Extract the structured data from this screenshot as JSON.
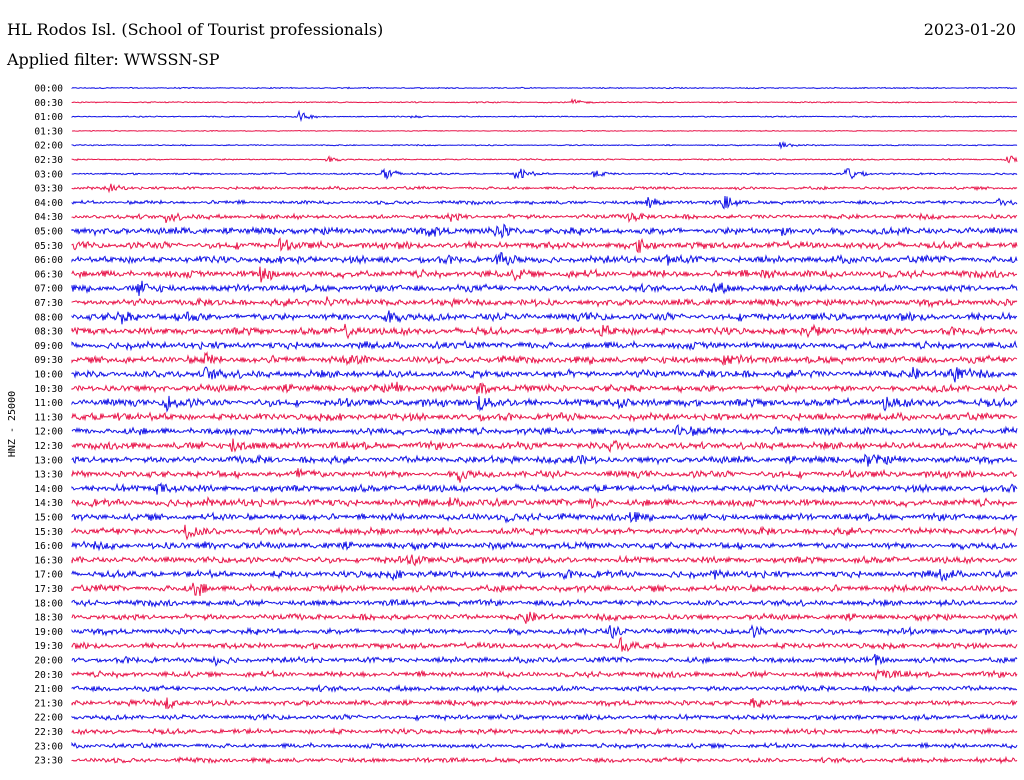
{
  "header": {
    "station": "HL Rodos Isl. (School of Tourist professionals)",
    "date": "2023-01-20",
    "filter_line": "Applied filter: WWSSN-SP"
  },
  "colors": {
    "odd_trace": "#1010e6",
    "even_trace": "#e8154a",
    "background": "#ffffff"
  },
  "chart_data": {
    "type": "line",
    "ylabel": "HNZ - 25000",
    "grid": false,
    "rows": [
      "00:00",
      "00:30",
      "01:00",
      "01:30",
      "02:00",
      "02:30",
      "03:00",
      "03:30",
      "04:00",
      "04:30",
      "05:00",
      "05:30",
      "06:00",
      "06:30",
      "07:00",
      "07:30",
      "08:00",
      "08:30",
      "09:00",
      "09:30",
      "10:00",
      "10:30",
      "11:00",
      "11:30",
      "12:00",
      "12:30",
      "13:00",
      "13:30",
      "14:00",
      "14:30",
      "15:00",
      "15:30",
      "16:00",
      "16:30",
      "17:00",
      "17:30",
      "18:00",
      "18:30",
      "19:00",
      "19:30",
      "20:00",
      "20:30",
      "21:00",
      "21:30",
      "22:00",
      "22:30",
      "23:00",
      "23:30"
    ],
    "row_colors": [
      "blue",
      "red"
    ],
    "noise_level": [
      0.4,
      0.4,
      0.4,
      0.3,
      0.4,
      0.5,
      0.6,
      1.0,
      1.2,
      1.5,
      2.4,
      2.3,
      2.4,
      2.4,
      2.3,
      2.3,
      2.5,
      2.4,
      2.4,
      2.4,
      2.5,
      2.4,
      2.5,
      2.4,
      2.4,
      2.4,
      2.4,
      2.3,
      2.3,
      2.4,
      2.3,
      2.3,
      2.3,
      2.2,
      2.2,
      2.2,
      2.0,
      2.0,
      2.0,
      1.9,
      1.9,
      1.9,
      1.8,
      1.8,
      1.7,
      1.7,
      1.6,
      1.6
    ],
    "events": [
      {
        "row": 1,
        "t": 0.53,
        "amp": 3
      },
      {
        "row": 2,
        "t": 0.24,
        "amp": 5
      },
      {
        "row": 2,
        "t": 0.36,
        "amp": 2
      },
      {
        "row": 4,
        "t": 0.75,
        "amp": 4
      },
      {
        "row": 5,
        "t": 0.27,
        "amp": 3
      },
      {
        "row": 5,
        "t": 0.99,
        "amp": 5
      },
      {
        "row": 6,
        "t": 0.33,
        "amp": 9
      },
      {
        "row": 6,
        "t": 0.47,
        "amp": 8
      },
      {
        "row": 6,
        "t": 0.55,
        "amp": 4
      },
      {
        "row": 6,
        "t": 0.82,
        "amp": 9
      },
      {
        "row": 7,
        "t": 0.04,
        "amp": 4
      },
      {
        "row": 8,
        "t": 0.61,
        "amp": 6
      },
      {
        "row": 8,
        "t": 0.69,
        "amp": 7
      },
      {
        "row": 8,
        "t": 0.98,
        "amp": 4
      },
      {
        "row": 9,
        "t": 0.1,
        "amp": 7
      },
      {
        "row": 9,
        "t": 0.4,
        "amp": 4
      },
      {
        "row": 9,
        "t": 0.59,
        "amp": 6
      },
      {
        "row": 10,
        "t": 0.45,
        "amp": 7
      },
      {
        "row": 10,
        "t": 0.38,
        "amp": 5
      },
      {
        "row": 10,
        "t": 0.75,
        "amp": 4
      },
      {
        "row": 11,
        "t": 0.22,
        "amp": 5
      },
      {
        "row": 11,
        "t": 0.6,
        "amp": 6
      },
      {
        "row": 12,
        "t": 0.45,
        "amp": 6
      },
      {
        "row": 12,
        "t": 0.63,
        "amp": 5
      },
      {
        "row": 13,
        "t": 0.2,
        "amp": 9
      },
      {
        "row": 13,
        "t": 0.47,
        "amp": 5
      },
      {
        "row": 13,
        "t": 0.73,
        "amp": 5
      },
      {
        "row": 14,
        "t": 0.07,
        "amp": 6
      },
      {
        "row": 14,
        "t": 0.68,
        "amp": 5
      },
      {
        "row": 15,
        "t": 0.27,
        "amp": 5
      },
      {
        "row": 16,
        "t": 0.05,
        "amp": 6
      },
      {
        "row": 16,
        "t": 0.12,
        "amp": 5
      },
      {
        "row": 16,
        "t": 0.33,
        "amp": 8
      },
      {
        "row": 17,
        "t": 0.29,
        "amp": 6
      },
      {
        "row": 17,
        "t": 0.56,
        "amp": 6
      },
      {
        "row": 17,
        "t": 0.78,
        "amp": 5
      },
      {
        "row": 19,
        "t": 0.14,
        "amp": 6
      },
      {
        "row": 19,
        "t": 0.29,
        "amp": 6
      },
      {
        "row": 19,
        "t": 0.69,
        "amp": 5
      },
      {
        "row": 20,
        "t": 0.14,
        "amp": 7
      },
      {
        "row": 20,
        "t": 0.89,
        "amp": 5
      },
      {
        "row": 20,
        "t": 0.93,
        "amp": 7
      },
      {
        "row": 21,
        "t": 0.34,
        "amp": 6
      },
      {
        "row": 21,
        "t": 0.43,
        "amp": 5
      },
      {
        "row": 22,
        "t": 0.1,
        "amp": 7
      },
      {
        "row": 22,
        "t": 0.43,
        "amp": 8
      },
      {
        "row": 22,
        "t": 0.58,
        "amp": 5
      },
      {
        "row": 22,
        "t": 0.86,
        "amp": 6
      },
      {
        "row": 23,
        "t": 0.05,
        "amp": 4
      },
      {
        "row": 24,
        "t": 0.64,
        "amp": 7
      },
      {
        "row": 24,
        "t": 0.79,
        "amp": 5
      },
      {
        "row": 25,
        "t": 0.17,
        "amp": 9
      },
      {
        "row": 25,
        "t": 0.57,
        "amp": 6
      },
      {
        "row": 26,
        "t": 0.53,
        "amp": 5
      },
      {
        "row": 26,
        "t": 0.84,
        "amp": 6
      },
      {
        "row": 27,
        "t": 0.24,
        "amp": 6
      },
      {
        "row": 27,
        "t": 0.41,
        "amp": 5
      },
      {
        "row": 28,
        "t": 0.09,
        "amp": 6
      },
      {
        "row": 29,
        "t": 0.14,
        "amp": 4
      },
      {
        "row": 29,
        "t": 0.4,
        "amp": 4
      },
      {
        "row": 29,
        "t": 0.55,
        "amp": 4
      },
      {
        "row": 30,
        "t": 0.46,
        "amp": 4
      },
      {
        "row": 30,
        "t": 0.59,
        "amp": 4
      },
      {
        "row": 31,
        "t": 0.12,
        "amp": 6
      },
      {
        "row": 32,
        "t": 0.14,
        "amp": 4
      },
      {
        "row": 33,
        "t": 0.36,
        "amp": 6
      },
      {
        "row": 34,
        "t": 0.34,
        "amp": 4
      },
      {
        "row": 34,
        "t": 0.52,
        "amp": 4
      },
      {
        "row": 34,
        "t": 0.68,
        "amp": 4
      },
      {
        "row": 34,
        "t": 0.92,
        "amp": 6
      },
      {
        "row": 35,
        "t": 0.13,
        "amp": 8
      },
      {
        "row": 37,
        "t": 0.48,
        "amp": 5
      },
      {
        "row": 38,
        "t": 0.57,
        "amp": 6
      },
      {
        "row": 38,
        "t": 0.72,
        "amp": 4
      },
      {
        "row": 39,
        "t": 0.58,
        "amp": 6
      },
      {
        "row": 40,
        "t": 0.15,
        "amp": 4
      },
      {
        "row": 40,
        "t": 0.85,
        "amp": 5
      },
      {
        "row": 41,
        "t": 0.85,
        "amp": 7
      },
      {
        "row": 43,
        "t": 0.1,
        "amp": 5
      },
      {
        "row": 43,
        "t": 0.72,
        "amp": 4
      }
    ]
  }
}
